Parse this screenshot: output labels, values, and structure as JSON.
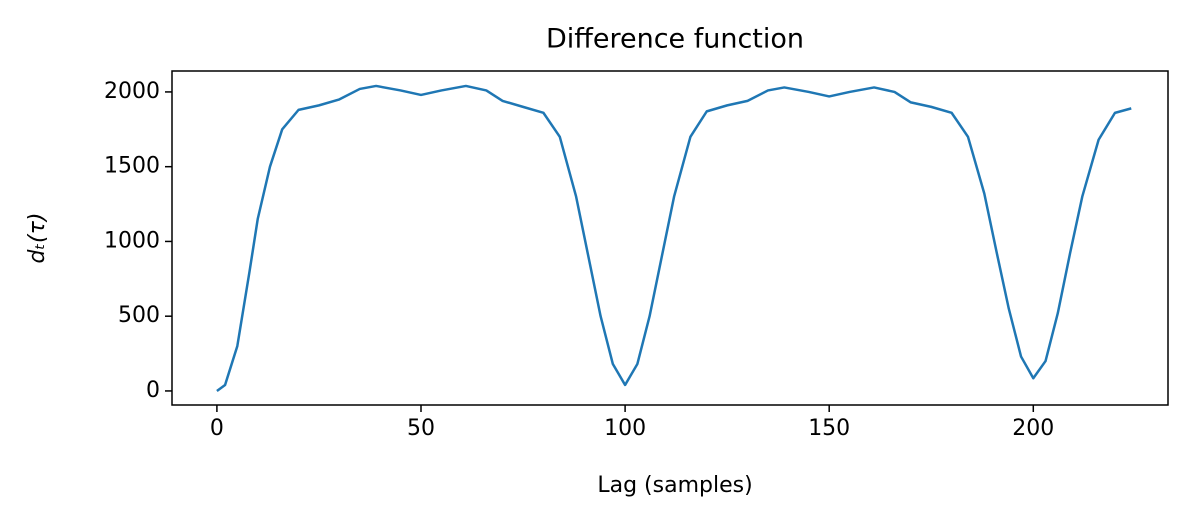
{
  "chart_data": {
    "type": "line",
    "title": "Difference function",
    "xlabel": "Lag (samples)",
    "ylabel": "dₜ(τ)",
    "x": [
      0,
      2,
      5,
      8,
      10,
      13,
      16,
      20,
      25,
      30,
      35,
      39,
      45,
      50,
      55,
      61,
      66,
      70,
      75,
      80,
      84,
      88,
      91,
      94,
      97,
      100,
      103,
      106,
      109,
      112,
      116,
      120,
      125,
      130,
      135,
      139,
      145,
      150,
      155,
      161,
      166,
      170,
      175,
      180,
      184,
      188,
      191,
      194,
      197,
      200,
      203,
      206,
      209,
      212,
      216,
      220,
      224
    ],
    "series": [
      {
        "name": "d",
        "color": "#1f77b4",
        "values": [
          0,
          40,
          300,
          800,
          1150,
          1500,
          1750,
          1880,
          1910,
          1950,
          2020,
          2040,
          2010,
          1980,
          2010,
          2040,
          2010,
          1940,
          1900,
          1860,
          1700,
          1300,
          900,
          500,
          180,
          40,
          180,
          500,
          900,
          1300,
          1700,
          1870,
          1910,
          1940,
          2010,
          2030,
          2000,
          1970,
          2000,
          2030,
          2000,
          1930,
          1900,
          1860,
          1700,
          1320,
          930,
          550,
          230,
          85,
          200,
          520,
          920,
          1300,
          1680,
          1860,
          1890
        ]
      }
    ],
    "xlim": [
      -11,
      233
    ],
    "ylim": [
      -94,
      2140
    ],
    "xticks": [
      0,
      50,
      100,
      150,
      200
    ],
    "yticks": [
      0,
      500,
      1000,
      1500,
      2000
    ]
  }
}
